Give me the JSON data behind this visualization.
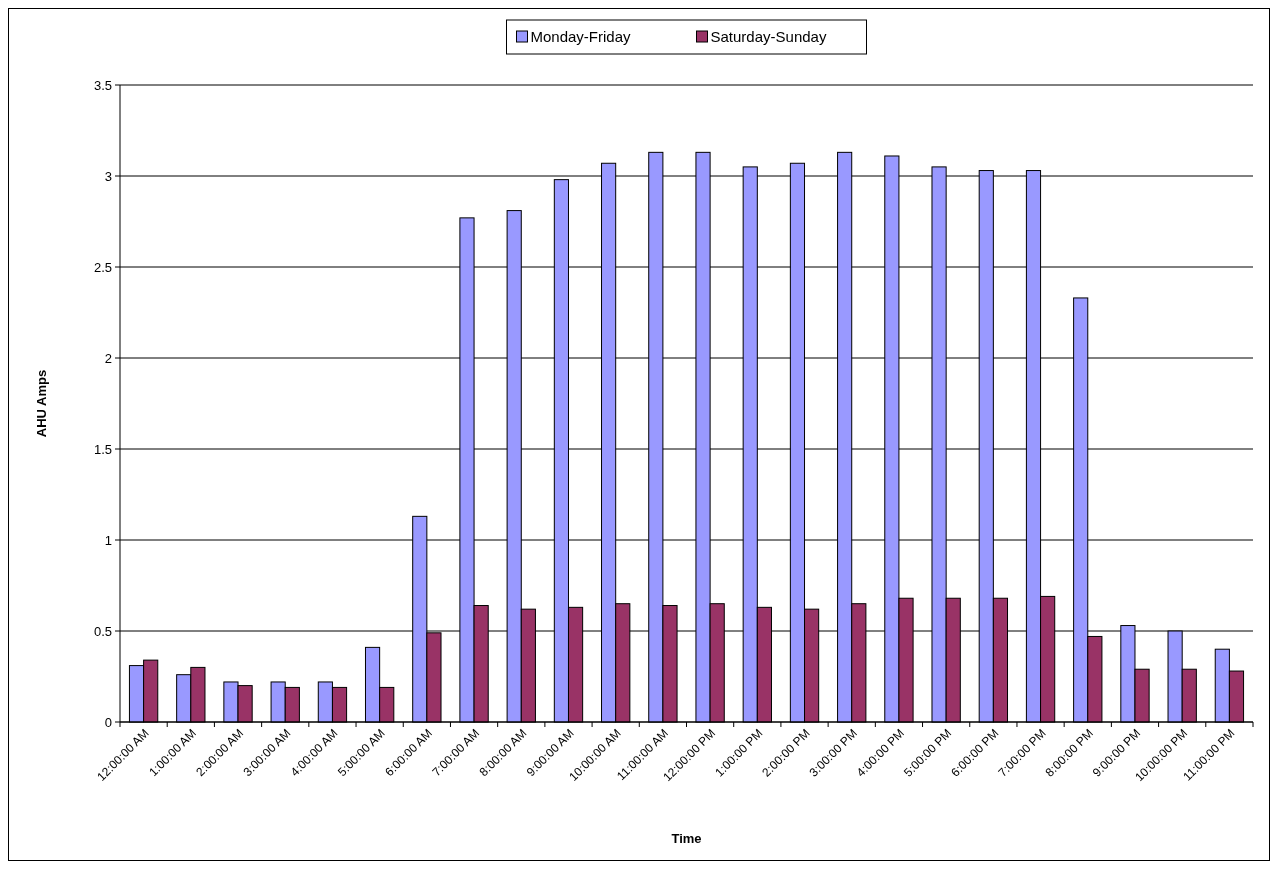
{
  "chart_data": {
    "type": "bar",
    "xlabel": "Time",
    "ylabel": "AHU Amps",
    "categories": [
      "12:00:00 AM",
      "1:00:00 AM",
      "2:00:00 AM",
      "3:00:00 AM",
      "4:00:00 AM",
      "5:00:00 AM",
      "6:00:00 AM",
      "7:00:00 AM",
      "8:00:00 AM",
      "9:00:00 AM",
      "10:00:00 AM",
      "11:00:00 AM",
      "12:00:00 PM",
      "1:00:00 PM",
      "2:00:00 PM",
      "3:00:00 PM",
      "4:00:00 PM",
      "5:00:00 PM",
      "6:00:00 PM",
      "7:00:00 PM",
      "8:00:00 PM",
      "9:00:00 PM",
      "10:00:00 PM",
      "11:00:00 PM"
    ],
    "series": [
      {
        "name": "Monday-Friday",
        "color": "#9999ff",
        "values": [
          0.31,
          0.26,
          0.22,
          0.22,
          0.22,
          0.41,
          1.13,
          2.77,
          2.81,
          2.98,
          3.07,
          3.13,
          3.13,
          3.05,
          3.07,
          3.13,
          3.11,
          3.05,
          3.03,
          3.03,
          2.33,
          0.53,
          0.5,
          0.4
        ]
      },
      {
        "name": "Saturday-Sunday",
        "color": "#993366",
        "values": [
          0.34,
          0.3,
          0.2,
          0.19,
          0.19,
          0.19,
          0.49,
          0.64,
          0.62,
          0.63,
          0.65,
          0.64,
          0.65,
          0.63,
          0.62,
          0.65,
          0.68,
          0.68,
          0.68,
          0.69,
          0.47,
          0.29,
          0.29,
          0.28
        ]
      }
    ],
    "ylim": [
      0,
      3.5
    ],
    "yticks": [
      0,
      0.5,
      1,
      1.5,
      2,
      2.5,
      3,
      3.5
    ],
    "grid": "y",
    "legend": "top"
  }
}
